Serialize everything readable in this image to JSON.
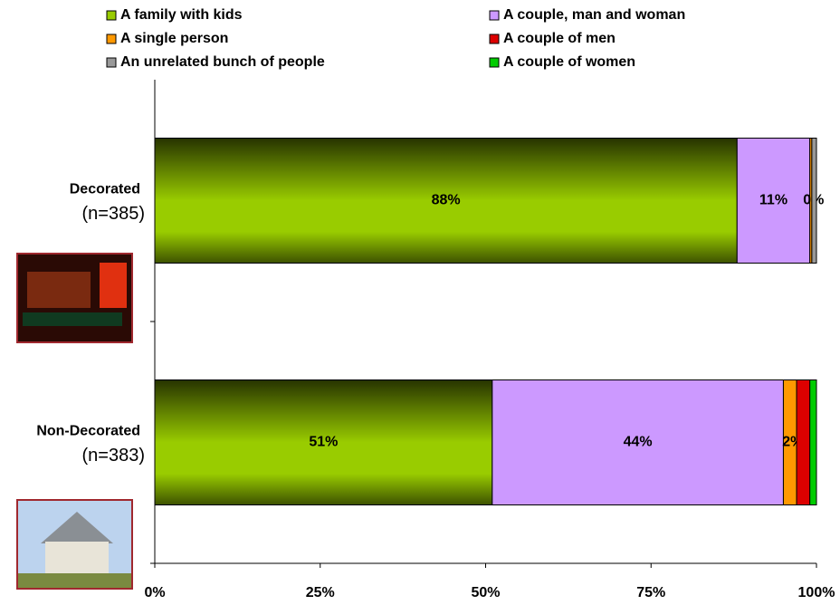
{
  "chart_data": {
    "type": "stacked-barh",
    "categories": [
      "Decorated",
      "Non-Decorated"
    ],
    "sample_sizes": [
      "(n=385)",
      "(n=383)"
    ],
    "series": [
      {
        "name": "A family with kids",
        "color": "#99cc00",
        "values": [
          88,
          51
        ],
        "value_labels": [
          "88%",
          "51%"
        ]
      },
      {
        "name": "A couple, man and woman",
        "color": "#cc99ff",
        "values": [
          11,
          44
        ],
        "value_labels": [
          "11%",
          "44%"
        ]
      },
      {
        "name": "A single person",
        "color": "#ff9900",
        "values": [
          0.3,
          2
        ],
        "value_labels": [
          "0%",
          "2%"
        ]
      },
      {
        "name": "A couple of men",
        "color": "#dd0000",
        "values": [
          0,
          2
        ],
        "value_labels": [
          null,
          null
        ]
      },
      {
        "name": "An unrelated bunch of people",
        "color": "#999999",
        "values": [
          0.7,
          0
        ],
        "value_labels": [
          null,
          null
        ]
      },
      {
        "name": "A couple of women",
        "color": "#00cc00",
        "values": [
          0,
          1
        ],
        "value_labels": [
          null,
          null
        ]
      }
    ],
    "xlim": [
      0,
      100
    ],
    "xticks": [
      {
        "value": 0,
        "label": "0%"
      },
      {
        "value": 25,
        "label": "25%"
      },
      {
        "value": 50,
        "label": "50%"
      },
      {
        "value": 75,
        "label": "75%"
      },
      {
        "value": 100,
        "label": "100%"
      }
    ]
  }
}
